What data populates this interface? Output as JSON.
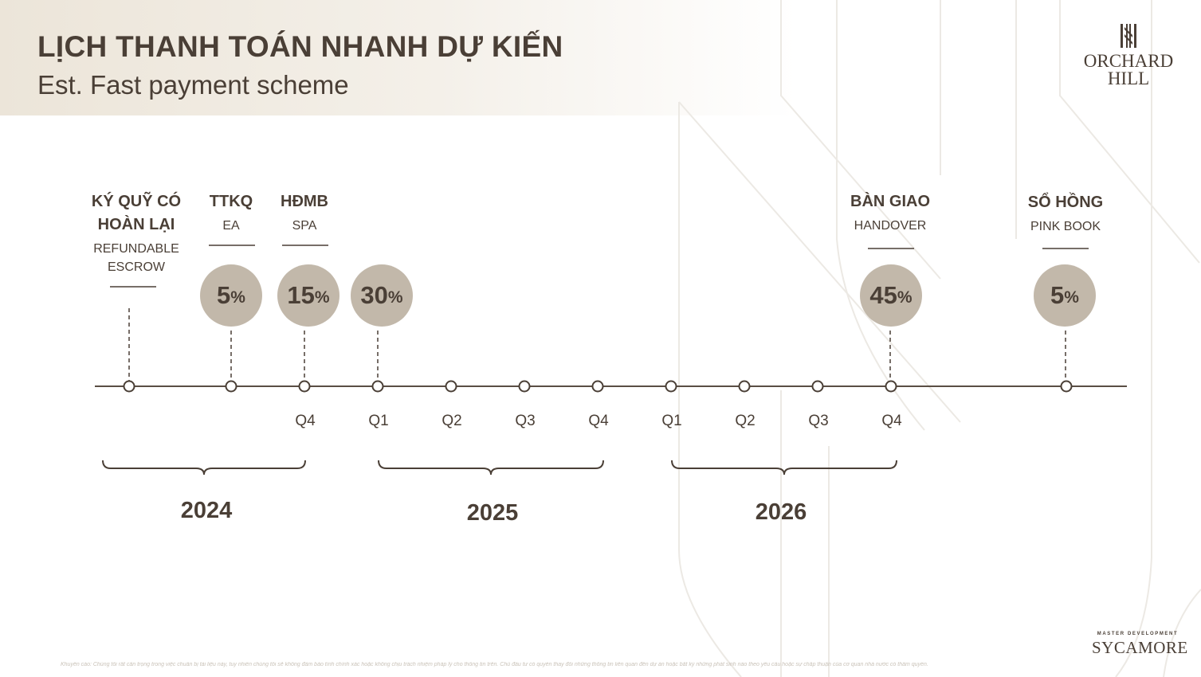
{
  "header": {
    "title": "LỊCH THANH TOÁN NHANH DỰ KIẾN",
    "subtitle": "Est. Fast payment scheme"
  },
  "logo": {
    "name": "ORCHARD\nHILL"
  },
  "milestones": [
    {
      "vn": "KÝ QUỸ CÓ HOÀN LẠI",
      "en": "REFUNDABLE ESCROW"
    },
    {
      "vn": "TTKQ",
      "en": "EA",
      "percent": "5",
      "percent_value": 5
    },
    {
      "vn": "HĐMB",
      "en": "SPA",
      "percent": "15",
      "percent_value": 15
    },
    {
      "percent": "30",
      "percent_value": 30
    },
    {
      "vn": "BÀN GIAO",
      "en": "HANDOVER",
      "percent": "45",
      "percent_value": 45
    },
    {
      "vn": "SỔ HỒNG",
      "en": "PINK BOOK",
      "percent": "5",
      "percent_value": 5
    }
  ],
  "percent_sign": "%",
  "quarters": [
    "Q4",
    "Q1",
    "Q2",
    "Q3",
    "Q4",
    "Q1",
    "Q2",
    "Q3",
    "Q4"
  ],
  "years": [
    "2024",
    "2025",
    "2026"
  ],
  "footer": {
    "developer_label": "MASTER DEVELOPMENT",
    "developer_name": "SYCAMORE",
    "disclaimer": "Khuyến cáo: Chúng tôi rất cẩn trọng trong việc chuẩn bị tài liệu này, tuy nhiên chúng tôi sẽ không đảm bảo tính chính xác hoặc không chịu trách nhiệm pháp lý cho thông tin trên. Chủ đầu tư có quyền thay đổi những thông tin liên quan đến dự án hoặc bất kỳ những phát sinh nào theo yêu cầu hoặc sự chấp thuận của cơ quan nhà nước có thẩm quyền."
  },
  "colors": {
    "text": "#4a3f36",
    "circle": "#c2b8aa",
    "band": "#ece5d9"
  }
}
